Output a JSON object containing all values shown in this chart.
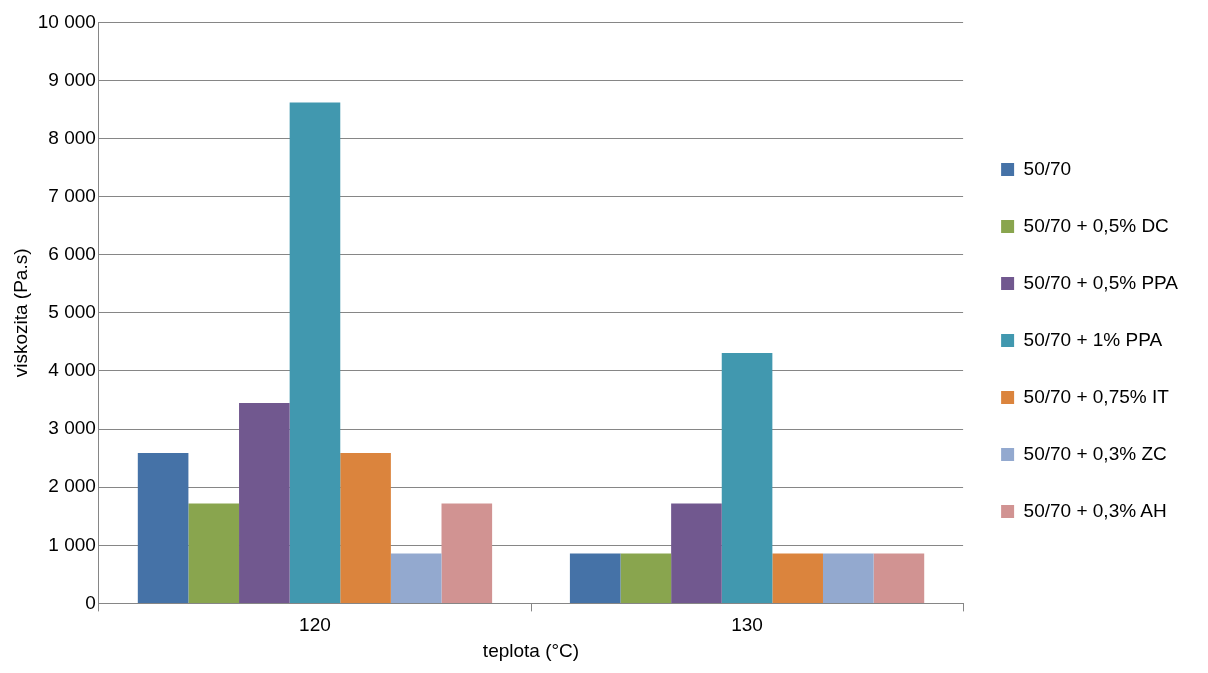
{
  "chart_data": {
    "type": "bar",
    "xlabel": "teplota (°C)",
    "ylabel": "viskozita (Pa.s)",
    "categories": [
      "120",
      "130"
    ],
    "series": [
      {
        "name": "50/70",
        "color": "#4572a7",
        "values": [
          2590,
          860
        ]
      },
      {
        "name": "50/70 + 0,5% DC",
        "color": "#89a54e",
        "values": [
          1720,
          860
        ]
      },
      {
        "name": "50/70 + 0,5% PPA",
        "color": "#71588f",
        "values": [
          3450,
          1720
        ]
      },
      {
        "name": "50/70 + 1% PPA",
        "color": "#4198af",
        "values": [
          8620,
          4310
        ]
      },
      {
        "name": "50/70 + 0,75% IT",
        "color": "#db843d",
        "values": [
          2590,
          860
        ]
      },
      {
        "name": "50/70 + 0,3% ZC",
        "color": "#93a9cf",
        "values": [
          860,
          860
        ]
      },
      {
        "name": "50/70 + 0,3% AH",
        "color": "#d19392",
        "values": [
          1720,
          860
        ]
      }
    ],
    "ylim": [
      0,
      10000
    ],
    "yticks": [
      0,
      {
        "value": 1000,
        "label": "1 000"
      },
      {
        "value": 2000,
        "label": "2 000"
      },
      {
        "value": 3000,
        "label": "3 000"
      },
      {
        "value": 4000,
        "label": "4 000"
      },
      {
        "value": 5000,
        "label": "5 000"
      },
      {
        "value": 6000,
        "label": "6 000"
      },
      {
        "value": 7000,
        "label": "7 000"
      },
      {
        "value": 8000,
        "label": "8 000"
      },
      {
        "value": 9000,
        "label": "9 000"
      },
      {
        "value": 10000,
        "label": "10 000"
      }
    ],
    "grid": "y",
    "legend": "right"
  }
}
